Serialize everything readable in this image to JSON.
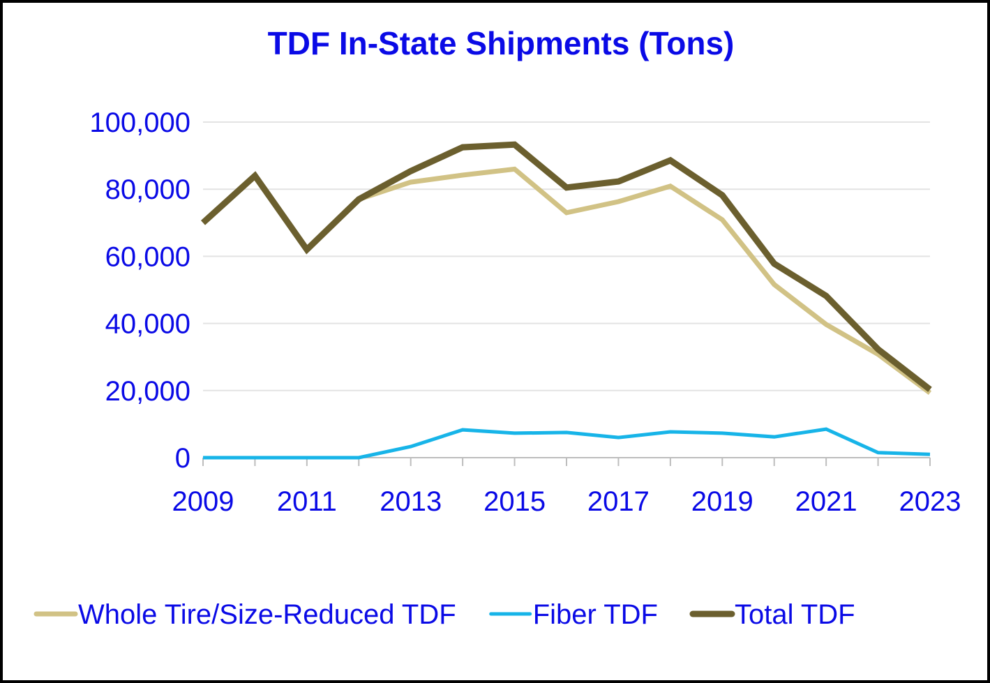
{
  "chart_data": {
    "type": "line",
    "title": "TDF In-State Shipments (Tons)",
    "x": [
      2009,
      2010,
      2011,
      2012,
      2013,
      2014,
      2015,
      2016,
      2017,
      2018,
      2019,
      2020,
      2021,
      2022,
      2023
    ],
    "xlim": [
      2009,
      2023
    ],
    "xticks": [
      2009,
      2011,
      2013,
      2015,
      2017,
      2019,
      2021,
      2023
    ],
    "ylim": [
      0,
      100000
    ],
    "yticks": [
      0,
      {
        "value": 20000,
        "label": "20,000"
      },
      {
        "value": 40000,
        "label": "40,000"
      },
      {
        "value": 60000,
        "label": "60,000"
      },
      {
        "value": 80000,
        "label": "80,000"
      },
      {
        "value": 100000,
        "label": "100,000"
      }
    ],
    "grid": true,
    "legend": "bottom",
    "series": [
      {
        "name": "Whole Tire/Size-Reduced TDF",
        "color": "#d1c285",
        "values": [
          70000,
          84000,
          62000,
          77000,
          82100,
          84200,
          86000,
          73000,
          76300,
          80900,
          70900,
          51600,
          39700,
          30800,
          19300
        ]
      },
      {
        "name": "Fiber TDF",
        "color": "#17b4e8",
        "values": [
          0,
          0,
          0,
          0,
          3300,
          8300,
          7300,
          7500,
          6000,
          7700,
          7300,
          6200,
          8500,
          1500,
          1000
        ]
      },
      {
        "name": "Total TDF",
        "color": "#6b5f2e",
        "values": [
          70000,
          84000,
          62000,
          77000,
          85400,
          92500,
          93300,
          80500,
          82300,
          88600,
          78200,
          57800,
          48200,
          32300,
          20300
        ]
      }
    ]
  }
}
